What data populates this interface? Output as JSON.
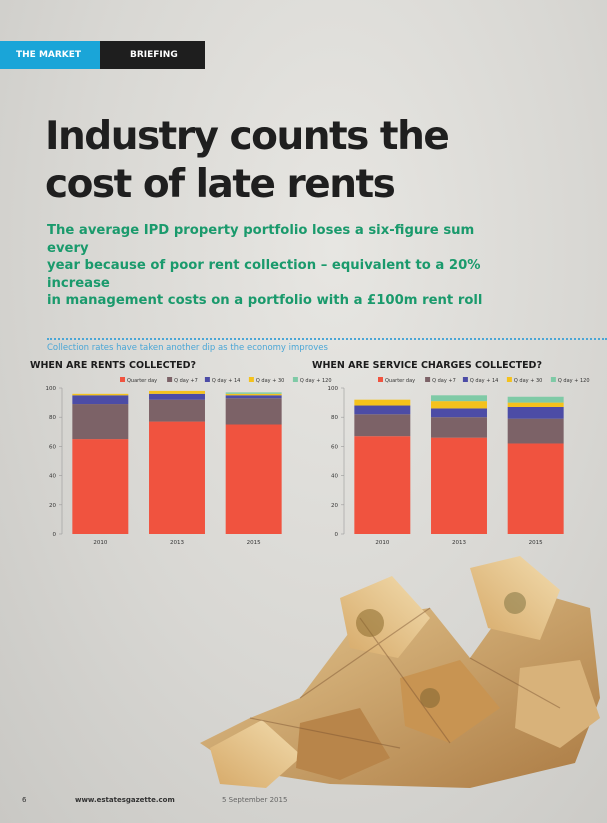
{
  "section": {
    "primary": "THE MARKET",
    "secondary": "BRIEFING"
  },
  "headline": {
    "line1": "Industry counts the",
    "line2": "cost of late rents"
  },
  "standfirst": {
    "line1": "The average IPD property portfolio loses a six-figure sum every",
    "line2": "year because of poor rent collection – equivalent to a 20% increase",
    "line3": "in management costs on a portfolio with a £100m rent roll"
  },
  "caption": "Collection rates have taken another dip as the economy improves",
  "colors": {
    "accent_blue": "#1aa5d8",
    "headline_green": "#1a9a6c",
    "series": [
      "#f0533f",
      "#7c6267",
      "#4c4ca6",
      "#f4c21c",
      "#7fcaa6"
    ]
  },
  "chart_data": [
    {
      "type": "bar",
      "stacked": true,
      "title": "WHEN ARE RENTS COLLECTED?",
      "categories": [
        "2010",
        "2013",
        "2015"
      ],
      "ylim": [
        0,
        100
      ],
      "yticks": [
        "0",
        "20",
        "40",
        "60",
        "80",
        "100"
      ],
      "legend_position": "top-right",
      "series": [
        {
          "name": "Quarter day",
          "values": [
            65,
            77,
            75
          ]
        },
        {
          "name": "Q day +7",
          "values": [
            24,
            15,
            18
          ]
        },
        {
          "name": "Q day + 14",
          "values": [
            6,
            4,
            2
          ]
        },
        {
          "name": "Q day + 30",
          "values": [
            1,
            2,
            1
          ]
        },
        {
          "name": "Q day + 120",
          "values": [
            0,
            0,
            1
          ]
        }
      ]
    },
    {
      "type": "bar",
      "stacked": true,
      "title": "WHEN ARE SERVICE CHARGES COLLECTED?",
      "categories": [
        "2010",
        "2013",
        "2015"
      ],
      "ylim": [
        0,
        100
      ],
      "yticks": [
        "0",
        "20",
        "40",
        "60",
        "80",
        "100"
      ],
      "legend_position": "top-right",
      "series": [
        {
          "name": "Quarter day",
          "values": [
            67,
            66,
            62
          ]
        },
        {
          "name": "Q day +7",
          "values": [
            15,
            14,
            17
          ]
        },
        {
          "name": "Q day + 14",
          "values": [
            6,
            6,
            8
          ]
        },
        {
          "name": "Q day + 30",
          "values": [
            4,
            5,
            3
          ]
        },
        {
          "name": "Q day + 120",
          "values": [
            0,
            4,
            4
          ]
        }
      ]
    }
  ],
  "footer": {
    "page_number": "6",
    "website": "www.estatesgazette.com",
    "date": "5 September 2015"
  }
}
